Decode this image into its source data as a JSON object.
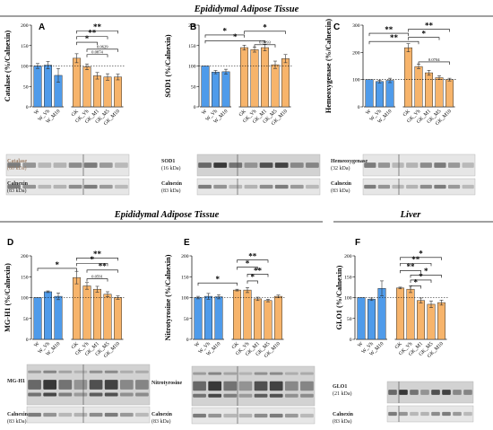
{
  "figure": {
    "top_title": "Epididymal Adipose Tissue",
    "mid_title_left": "Epididymal Adipose Tissue",
    "mid_title_right": "Liver"
  },
  "colors": {
    "blue": "#4f9bea",
    "orange": "#f7b46b",
    "error": "#333333"
  },
  "chart_data": [
    {
      "type": "bar",
      "panel": "A",
      "ylabel": "Catalase (%/Calnexin)",
      "ylim": [
        0,
        200
      ],
      "yticks": [
        0,
        50,
        100,
        150,
        200
      ],
      "reference_line": 100,
      "groups": [
        {
          "color": "blue",
          "categories": [
            "W",
            "W_Vh",
            "W_M10"
          ],
          "values": [
            100,
            102,
            77
          ],
          "errors": [
            6,
            9,
            17
          ]
        },
        {
          "color": "orange",
          "categories": [
            "GK",
            "GK_Vh",
            "GK_M1",
            "GK_M5",
            "GK_M10"
          ],
          "values": [
            119,
            98,
            76,
            73,
            73
          ],
          "errors": [
            11,
            7,
            8,
            8,
            7
          ]
        }
      ],
      "significance": [
        {
          "from": 3,
          "to": 7,
          "label": "**",
          "level": 186
        },
        {
          "from": 3,
          "to": 6,
          "label": "**",
          "level": 172
        },
        {
          "from": 3,
          "to": 5,
          "label": "*",
          "level": 158
        },
        {
          "from": 4,
          "to": 7,
          "label": "0.0629",
          "level": 141
        },
        {
          "from": 4,
          "to": 6,
          "label": "0.0874",
          "level": 128
        }
      ],
      "blots": [
        {
          "label": "Catalase",
          "kda": "(60 kDa)",
          "label_color": "#9a7b62"
        },
        {
          "label": "Calnexin",
          "kda": "(83 kDa)",
          "label_color": "#222222"
        }
      ]
    },
    {
      "type": "bar",
      "panel": "B",
      "ylabel": "SOD1 (%/Calnexin)",
      "ylim": [
        0,
        200
      ],
      "yticks": [
        0,
        50,
        100,
        150,
        200
      ],
      "reference_line": 100,
      "groups": [
        {
          "color": "blue",
          "categories": [
            "W",
            "W_Vh",
            "W_M10"
          ],
          "values": [
            100,
            85,
            86
          ],
          "errors": [
            0,
            4,
            6
          ]
        },
        {
          "color": "orange",
          "categories": [
            "GK",
            "GK_Vh",
            "GK_M1",
            "GK_M5",
            "GK_M10"
          ],
          "values": [
            145,
            140,
            145,
            103,
            118
          ],
          "errors": [
            6,
            6,
            8,
            9,
            10
          ]
        }
      ],
      "significance": [
        {
          "from": 0,
          "to": 3,
          "label": "*",
          "level": 176
        },
        {
          "from": 3,
          "to": 7,
          "label": "*",
          "level": 185
        },
        {
          "from": 0,
          "to": 5,
          "label": "*",
          "level": 162
        },
        {
          "from": 4,
          "to": 6,
          "label": "0.0093",
          "level": 152
        }
      ],
      "blots": [
        {
          "label": "SOD1",
          "kda": "(16 kDa)",
          "label_color": "#222222"
        },
        {
          "label": "Calnexin",
          "kda": "(83 kDa)",
          "label_color": "#222222"
        }
      ]
    },
    {
      "type": "bar",
      "panel": "C",
      "ylabel": "Hemeoxygenase (%/Calnexin)",
      "ylim": [
        0,
        300
      ],
      "yticks": [
        0,
        100,
        200,
        300
      ],
      "reference_line": 100,
      "groups": [
        {
          "color": "blue",
          "categories": [
            "W",
            "W_Vh",
            "W_M10"
          ],
          "values": [
            100,
            93,
            97
          ],
          "errors": [
            0,
            5,
            8
          ]
        },
        {
          "color": "orange",
          "categories": [
            "GK",
            "GK_Vh",
            "GK_M1",
            "GK_M5",
            "GK_M10"
          ],
          "values": [
            217,
            148,
            125,
            107,
            100
          ],
          "errors": [
            15,
            8,
            9,
            7,
            5
          ]
        }
      ],
      "significance": [
        {
          "from": 0,
          "to": 3,
          "label": "**",
          "level": 270
        },
        {
          "from": 3,
          "to": 7,
          "label": "**",
          "level": 285
        },
        {
          "from": 0,
          "to": 4,
          "label": "**",
          "level": 240
        },
        {
          "from": 3,
          "to": 6,
          "label": "*",
          "level": 255
        },
        {
          "from": 4,
          "to": 7,
          "label": "0.0704",
          "level": 165
        }
      ],
      "blots": [
        {
          "label": "Hemeoxygenase",
          "kda": "(32 kDa)",
          "label_color": "#222222"
        },
        {
          "label": "Calnexin",
          "kda": "(83 kDa)",
          "label_color": "#222222"
        }
      ]
    },
    {
      "type": "bar",
      "panel": "D",
      "ylabel": "MG-H1 (%/Calnexin)",
      "ylim": [
        0,
        200
      ],
      "yticks": [
        0,
        50,
        100,
        150,
        200
      ],
      "reference_line": 100,
      "groups": [
        {
          "color": "blue",
          "categories": [
            "W",
            "W_Vh",
            "W_M10"
          ],
          "values": [
            100,
            114,
            103
          ],
          "errors": [
            0,
            2,
            8
          ]
        },
        {
          "color": "orange",
          "categories": [
            "GK",
            "GK_Vh",
            "GK_M1",
            "GK_M5",
            "GK_M10"
          ],
          "values": [
            148,
            128,
            120,
            108,
            100
          ],
          "errors": [
            15,
            8,
            7,
            6,
            4
          ]
        }
      ],
      "significance": [
        {
          "from": 0,
          "to": 3,
          "label": "*",
          "level": 170
        },
        {
          "from": 3,
          "to": 7,
          "label": "**",
          "level": 195
        },
        {
          "from": 3,
          "to": 6,
          "label": "*",
          "level": 182
        },
        {
          "from": 4,
          "to": 7,
          "label": "**",
          "level": 166
        },
        {
          "from": 4,
          "to": 6,
          "label": "0.0591",
          "level": 145
        }
      ],
      "blots": [
        {
          "label": "MG-H1",
          "kda": "",
          "label_color": "#222222"
        },
        {
          "label": "Calnexin",
          "kda": "(83 kDa)",
          "label_color": "#222222"
        }
      ]
    },
    {
      "type": "bar",
      "panel": "E",
      "ylabel": "Nitrotyrosine (%/Calnexin)",
      "ylim": [
        0,
        200
      ],
      "yticks": [
        0,
        50,
        100,
        150,
        200
      ],
      "reference_line": 100,
      "groups": [
        {
          "color": "blue",
          "categories": [
            "W",
            "W_Vh",
            "W_M10"
          ],
          "values": [
            100,
            103,
            102
          ],
          "errors": [
            3,
            7,
            5
          ]
        },
        {
          "color": "orange",
          "categories": [
            "GK",
            "GK_Vh",
            "GK_M1",
            "GK_M5",
            "GK_M10"
          ],
          "values": [
            118,
            118,
            97,
            93,
            103
          ],
          "errors": [
            2,
            6,
            4,
            3,
            3
          ]
        }
      ],
      "significance": [
        {
          "from": 0,
          "to": 3,
          "label": "*",
          "level": 135
        },
        {
          "from": 3,
          "to": 6,
          "label": "**",
          "level": 190
        },
        {
          "from": 3,
          "to": 5,
          "label": "*",
          "level": 173
        },
        {
          "from": 4,
          "to": 6,
          "label": "**",
          "level": 156
        },
        {
          "from": 4,
          "to": 5,
          "label": "*",
          "level": 140
        }
      ],
      "blots": [
        {
          "label": "Nitrotyrosine",
          "kda": "",
          "label_color": "#222222"
        },
        {
          "label": "Calnexin",
          "kda": "(83 kDa)",
          "label_color": "#222222"
        }
      ]
    },
    {
      "type": "bar",
      "panel": "F",
      "ylabel": "GLO1 (%/Calnexin)",
      "ylim": [
        0,
        200
      ],
      "yticks": [
        0,
        50,
        100,
        150,
        200
      ],
      "reference_line": 100,
      "groups": [
        {
          "color": "blue",
          "categories": [
            "W",
            "W_Vh",
            "W_M10"
          ],
          "values": [
            100,
            96,
            122
          ],
          "errors": [
            0,
            3,
            18
          ]
        },
        {
          "color": "orange",
          "categories": [
            "GK",
            "GK_Vh",
            "GK_M1",
            "GK_M5",
            "GK_M10"
          ],
          "values": [
            123,
            120,
            93,
            84,
            88
          ],
          "errors": [
            2,
            8,
            6,
            8,
            6
          ]
        }
      ],
      "significance": [
        {
          "from": 3,
          "to": 7,
          "label": "*",
          "level": 196
        },
        {
          "from": 3,
          "to": 6,
          "label": "**",
          "level": 182
        },
        {
          "from": 3,
          "to": 5,
          "label": "**",
          "level": 165
        },
        {
          "from": 4,
          "to": 7,
          "label": "*",
          "level": 154
        },
        {
          "from": 4,
          "to": 6,
          "label": "*",
          "level": 142
        },
        {
          "from": 4,
          "to": 5,
          "label": "*",
          "level": 128
        }
      ],
      "blots": [
        {
          "label": "GLO1",
          "kda": "(21 kDa)",
          "label_color": "#222222"
        },
        {
          "label": "Calnexin",
          "kda": "(83 kDa)",
          "label_color": "#222222"
        }
      ]
    }
  ]
}
